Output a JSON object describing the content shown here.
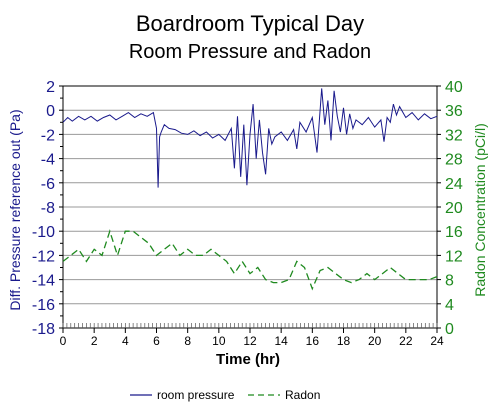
{
  "chart_data": {
    "type": "line",
    "title": "Boardroom Typical Day",
    "subtitle": "Room Pressure and Radon",
    "xlabel": "Time (hr)",
    "ylabel_left": "Diff. Pressure reference out (Pa)",
    "ylabel_right": "Radon Concentration (pCi/l)",
    "xlim": [
      0,
      24
    ],
    "ylim_left": [
      -18,
      2
    ],
    "ylim_right": [
      0,
      40
    ],
    "x_ticks": [
      "0",
      "2",
      "4",
      "6",
      "8",
      "10",
      "12",
      "14",
      "16",
      "18",
      "20",
      "22",
      "24"
    ],
    "y_left_ticks": [
      "2",
      "0",
      "-2",
      "-4",
      "-6",
      "-8",
      "-10",
      "-12",
      "-14",
      "-16",
      "-18"
    ],
    "y_right_ticks": [
      "40",
      "36",
      "32",
      "28",
      "24",
      "20",
      "16",
      "12",
      "8",
      "4",
      "0"
    ],
    "grid": true,
    "legend_position": "bottom",
    "colors": {
      "pressure": "#1a1a8c",
      "radon": "#1f8a1f",
      "left_axis": "#1a1a8c",
      "right_axis": "#1f8a1f",
      "grid": "#999999"
    },
    "series": [
      {
        "name": "room pressure",
        "axis": "left",
        "x": [
          0.0,
          0.3,
          0.6,
          1.0,
          1.4,
          1.8,
          2.2,
          2.6,
          3.0,
          3.4,
          3.8,
          4.2,
          4.6,
          5.0,
          5.4,
          5.8,
          6.0,
          6.1,
          6.2,
          6.3,
          6.5,
          6.8,
          7.2,
          7.6,
          8.0,
          8.4,
          8.8,
          9.2,
          9.6,
          10.0,
          10.4,
          10.8,
          11.0,
          11.2,
          11.4,
          11.6,
          11.8,
          12.0,
          12.2,
          12.4,
          12.6,
          12.8,
          13.0,
          13.2,
          13.4,
          13.6,
          14.0,
          14.4,
          14.8,
          15.0,
          15.2,
          15.6,
          16.0,
          16.3,
          16.6,
          16.8,
          17.0,
          17.2,
          17.4,
          17.6,
          17.8,
          18.0,
          18.2,
          18.4,
          18.6,
          18.8,
          19.2,
          19.6,
          20.0,
          20.4,
          20.6,
          20.8,
          21.0,
          21.2,
          21.4,
          21.6,
          22.0,
          22.4,
          22.8,
          23.2,
          23.6,
          24.0
        ],
        "y": [
          -1.0,
          -0.6,
          -0.9,
          -0.5,
          -0.8,
          -0.5,
          -0.9,
          -0.6,
          -0.4,
          -0.8,
          -0.5,
          -0.2,
          -0.6,
          -0.3,
          -0.5,
          -0.2,
          -1.5,
          -6.4,
          -2.2,
          -1.8,
          -1.2,
          -1.5,
          -1.6,
          -1.9,
          -2.0,
          -1.7,
          -2.1,
          -1.8,
          -2.3,
          -2.0,
          -2.5,
          -1.5,
          -4.8,
          -0.5,
          -5.5,
          -1.2,
          -6.2,
          -2.0,
          0.5,
          -4.0,
          -0.8,
          -3.5,
          -5.3,
          -1.5,
          -2.8,
          -2.2,
          -1.8,
          -2.5,
          -1.6,
          -3.2,
          -1.0,
          -1.8,
          -0.6,
          -3.5,
          1.8,
          -1.2,
          0.8,
          -2.5,
          1.6,
          -0.5,
          -1.8,
          0.2,
          -2.0,
          -0.3,
          -1.5,
          -0.8,
          -1.2,
          -0.6,
          -1.4,
          -0.8,
          -2.6,
          -0.6,
          -1.0,
          0.5,
          -0.4,
          0.3,
          -0.6,
          -0.2,
          -0.8,
          -0.3,
          -0.7,
          -0.5
        ]
      },
      {
        "name": "Radon",
        "axis": "right",
        "x": [
          0.0,
          0.5,
          1.0,
          1.5,
          2.0,
          2.5,
          3.0,
          3.5,
          4.0,
          4.5,
          5.0,
          5.5,
          6.0,
          6.5,
          7.0,
          7.5,
          8.0,
          8.5,
          9.0,
          9.5,
          10.0,
          10.5,
          11.0,
          11.5,
          12.0,
          12.5,
          13.0,
          13.5,
          14.0,
          14.5,
          15.0,
          15.5,
          16.0,
          16.5,
          17.0,
          17.5,
          18.0,
          18.5,
          19.0,
          19.5,
          20.0,
          20.5,
          21.0,
          21.5,
          22.0,
          22.5,
          23.0,
          23.5,
          24.0
        ],
        "y": [
          11,
          12,
          13,
          11,
          13,
          12,
          16,
          12,
          16,
          16,
          15,
          14,
          12,
          13,
          14,
          12,
          13,
          12,
          12,
          13,
          12,
          11,
          9,
          11,
          9,
          10,
          8,
          7.5,
          7.5,
          8,
          11,
          10,
          6.5,
          9.5,
          10,
          9,
          8,
          7.5,
          8,
          9,
          8,
          9,
          10,
          9,
          8,
          8,
          8,
          8,
          8.5
        ]
      }
    ]
  }
}
